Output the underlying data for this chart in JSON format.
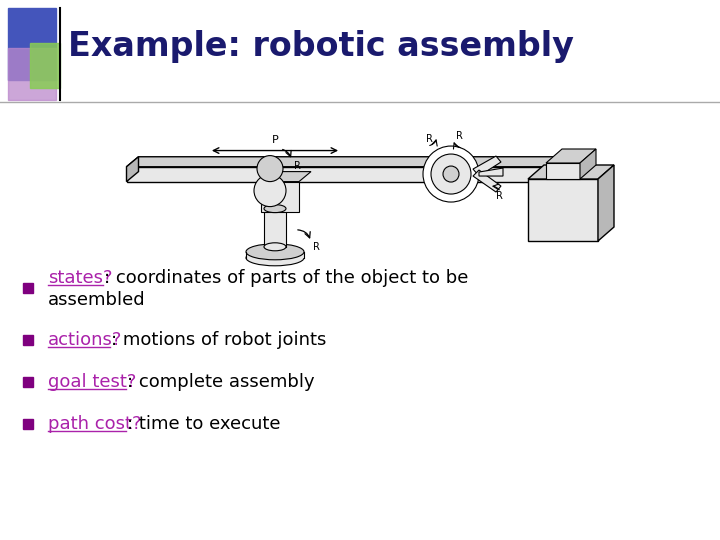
{
  "title": "Example: robotic assembly",
  "title_color": "#1a1a6e",
  "title_fontsize": 24,
  "bg_color": "#ffffff",
  "bullet_sq_color": "#7f007f",
  "text_color": "#000000",
  "link_color": "#aa22aa",
  "bullets": [
    {
      "link": "states?",
      "rest": ": coordinates of parts of the object to be assembled"
    },
    {
      "link": "actions?",
      "rest": ": motions of robot joints"
    },
    {
      "link": "goal test?",
      "rest": ": complete assembly"
    },
    {
      "link": "path cost?",
      "rest": ": time to execute"
    }
  ],
  "sq1_color": "#4455bb",
  "sq2_color": "#bb88cc",
  "sq3_color": "#88cc55",
  "divider_color": "#aaaaaa",
  "arm_gray_light": "#e8e8e8",
  "arm_gray_mid": "#d0d0d0",
  "arm_gray_dark": "#b8b8b8"
}
